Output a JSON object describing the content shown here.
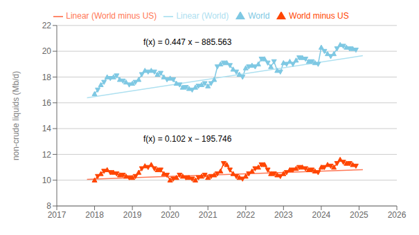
{
  "chart_data": {
    "type": "line",
    "ylabel": "non-crude liquids (Mb/d)",
    "xlim": [
      2017,
      2026
    ],
    "xticks": [
      2017,
      2018,
      2019,
      2020,
      2021,
      2022,
      2023,
      2024,
      2025,
      2026
    ],
    "ylim": [
      8,
      22
    ],
    "yticks": [
      8,
      10,
      12,
      14,
      16,
      18,
      20,
      22
    ],
    "grid": "y",
    "legend": "top",
    "series": [
      {
        "name": "World",
        "color": "#7EC8E3",
        "marker": "triangle",
        "line_style": "solid",
        "x": [
          2018.0,
          2018.083,
          2018.167,
          2018.25,
          2018.333,
          2018.417,
          2018.5,
          2018.583,
          2018.667,
          2018.75,
          2018.833,
          2018.917,
          2019.0,
          2019.083,
          2019.167,
          2019.25,
          2019.333,
          2019.417,
          2019.5,
          2019.583,
          2019.667,
          2019.75,
          2019.833,
          2019.917,
          2020.0,
          2020.083,
          2020.167,
          2020.25,
          2020.333,
          2020.417,
          2020.5,
          2020.583,
          2020.667,
          2020.75,
          2020.833,
          2020.917,
          2021.0,
          2021.083,
          2021.167,
          2021.25,
          2021.333,
          2021.417,
          2021.5,
          2021.583,
          2021.667,
          2021.75,
          2021.833,
          2021.917,
          2022.0,
          2022.083,
          2022.167,
          2022.25,
          2022.333,
          2022.417,
          2022.5,
          2022.583,
          2022.667,
          2022.75,
          2022.833,
          2022.917,
          2023.0,
          2023.083,
          2023.167,
          2023.25,
          2023.333,
          2023.417,
          2023.5,
          2023.583,
          2023.667,
          2023.75,
          2023.833,
          2023.917,
          2024.0,
          2024.083,
          2024.167,
          2024.25,
          2024.333,
          2024.417,
          2024.5,
          2024.583,
          2024.667,
          2024.75,
          2024.833,
          2024.917
        ],
        "values": [
          16.7,
          17.0,
          17.4,
          17.6,
          18.0,
          17.9,
          18.0,
          18.1,
          17.8,
          17.7,
          17.6,
          17.4,
          17.5,
          17.6,
          17.8,
          18.2,
          18.5,
          18.4,
          18.5,
          18.4,
          18.2,
          18.3,
          18.0,
          17.8,
          17.9,
          17.8,
          17.5,
          17.4,
          17.2,
          17.2,
          17.1,
          17.0,
          17.2,
          17.3,
          17.4,
          17.5,
          17.3,
          17.5,
          17.8,
          18.8,
          19.0,
          19.1,
          19.1,
          18.9,
          18.6,
          18.4,
          18.2,
          18.0,
          18.7,
          18.8,
          18.9,
          18.8,
          19.0,
          19.4,
          19.4,
          19.1,
          18.8,
          19.2,
          18.5,
          18.4,
          19.1,
          19.0,
          19.2,
          19.0,
          19.3,
          19.5,
          19.5,
          19.4,
          19.2,
          19.2,
          19.1,
          19.0,
          20.3,
          20.0,
          19.8,
          19.6,
          19.8,
          20.2,
          20.5,
          20.4,
          20.3,
          20.2,
          20.2,
          20.1
        ]
      },
      {
        "name": "Linear (World)",
        "color": "#ADE0F0",
        "line_style": "solid",
        "x": [
          2017.8,
          2025.1
        ],
        "values": [
          16.3936,
          19.6567
        ]
      },
      {
        "name": "World minus US",
        "color": "#FF4500",
        "marker": "triangle",
        "line_style": "solid",
        "x": [
          2018.0,
          2018.083,
          2018.167,
          2018.25,
          2018.333,
          2018.417,
          2018.5,
          2018.583,
          2018.667,
          2018.75,
          2018.833,
          2018.917,
          2019.0,
          2019.083,
          2019.167,
          2019.25,
          2019.333,
          2019.417,
          2019.5,
          2019.583,
          2019.667,
          2019.75,
          2019.833,
          2019.917,
          2020.0,
          2020.083,
          2020.167,
          2020.25,
          2020.333,
          2020.417,
          2020.5,
          2020.583,
          2020.667,
          2020.75,
          2020.833,
          2020.917,
          2021.0,
          2021.083,
          2021.167,
          2021.25,
          2021.333,
          2021.417,
          2021.5,
          2021.583,
          2021.667,
          2021.75,
          2021.833,
          2021.917,
          2022.0,
          2022.083,
          2022.167,
          2022.25,
          2022.333,
          2022.417,
          2022.5,
          2022.583,
          2022.667,
          2022.75,
          2022.833,
          2022.917,
          2023.0,
          2023.083,
          2023.167,
          2023.25,
          2023.333,
          2023.417,
          2023.5,
          2023.583,
          2023.667,
          2023.75,
          2023.833,
          2023.917,
          2024.0,
          2024.083,
          2024.167,
          2024.25,
          2024.333,
          2024.417,
          2024.5,
          2024.583,
          2024.667,
          2024.75,
          2024.833,
          2024.917
        ],
        "values": [
          10.0,
          10.3,
          10.5,
          10.7,
          10.8,
          10.6,
          10.6,
          10.5,
          10.4,
          10.4,
          10.3,
          10.2,
          10.2,
          10.3,
          10.6,
          10.9,
          11.1,
          11.0,
          11.2,
          10.9,
          10.8,
          10.8,
          10.5,
          10.4,
          10.0,
          10.1,
          10.2,
          10.4,
          10.3,
          10.2,
          10.2,
          10.1,
          10.0,
          10.2,
          10.3,
          10.4,
          10.2,
          10.3,
          10.4,
          10.5,
          10.7,
          11.3,
          11.2,
          10.8,
          10.5,
          10.3,
          10.2,
          10.1,
          10.3,
          10.5,
          10.7,
          10.9,
          11.0,
          11.2,
          11.2,
          10.8,
          10.5,
          10.5,
          10.4,
          10.3,
          10.5,
          10.6,
          10.8,
          10.8,
          10.9,
          11.0,
          11.0,
          10.9,
          10.8,
          10.8,
          10.7,
          10.6,
          11.0,
          11.0,
          11.2,
          11.1,
          11.0,
          11.3,
          11.6,
          11.4,
          11.3,
          11.3,
          11.2,
          11.1
        ]
      },
      {
        "name": "Linear (World minus US)",
        "color": "#FF7755",
        "line_style": "solid",
        "x": [
          2017.8,
          2025.1
        ],
        "values": [
          10.0696,
          10.8142
        ]
      }
    ],
    "annotations": [
      {
        "text": "f(x) = 0.447 x − 885.563",
        "x": 2019.2,
        "y": 20.7
      },
      {
        "text": "f(x) = 0.102 x − 195.746",
        "x": 2019.2,
        "y": 13.2
      }
    ]
  }
}
